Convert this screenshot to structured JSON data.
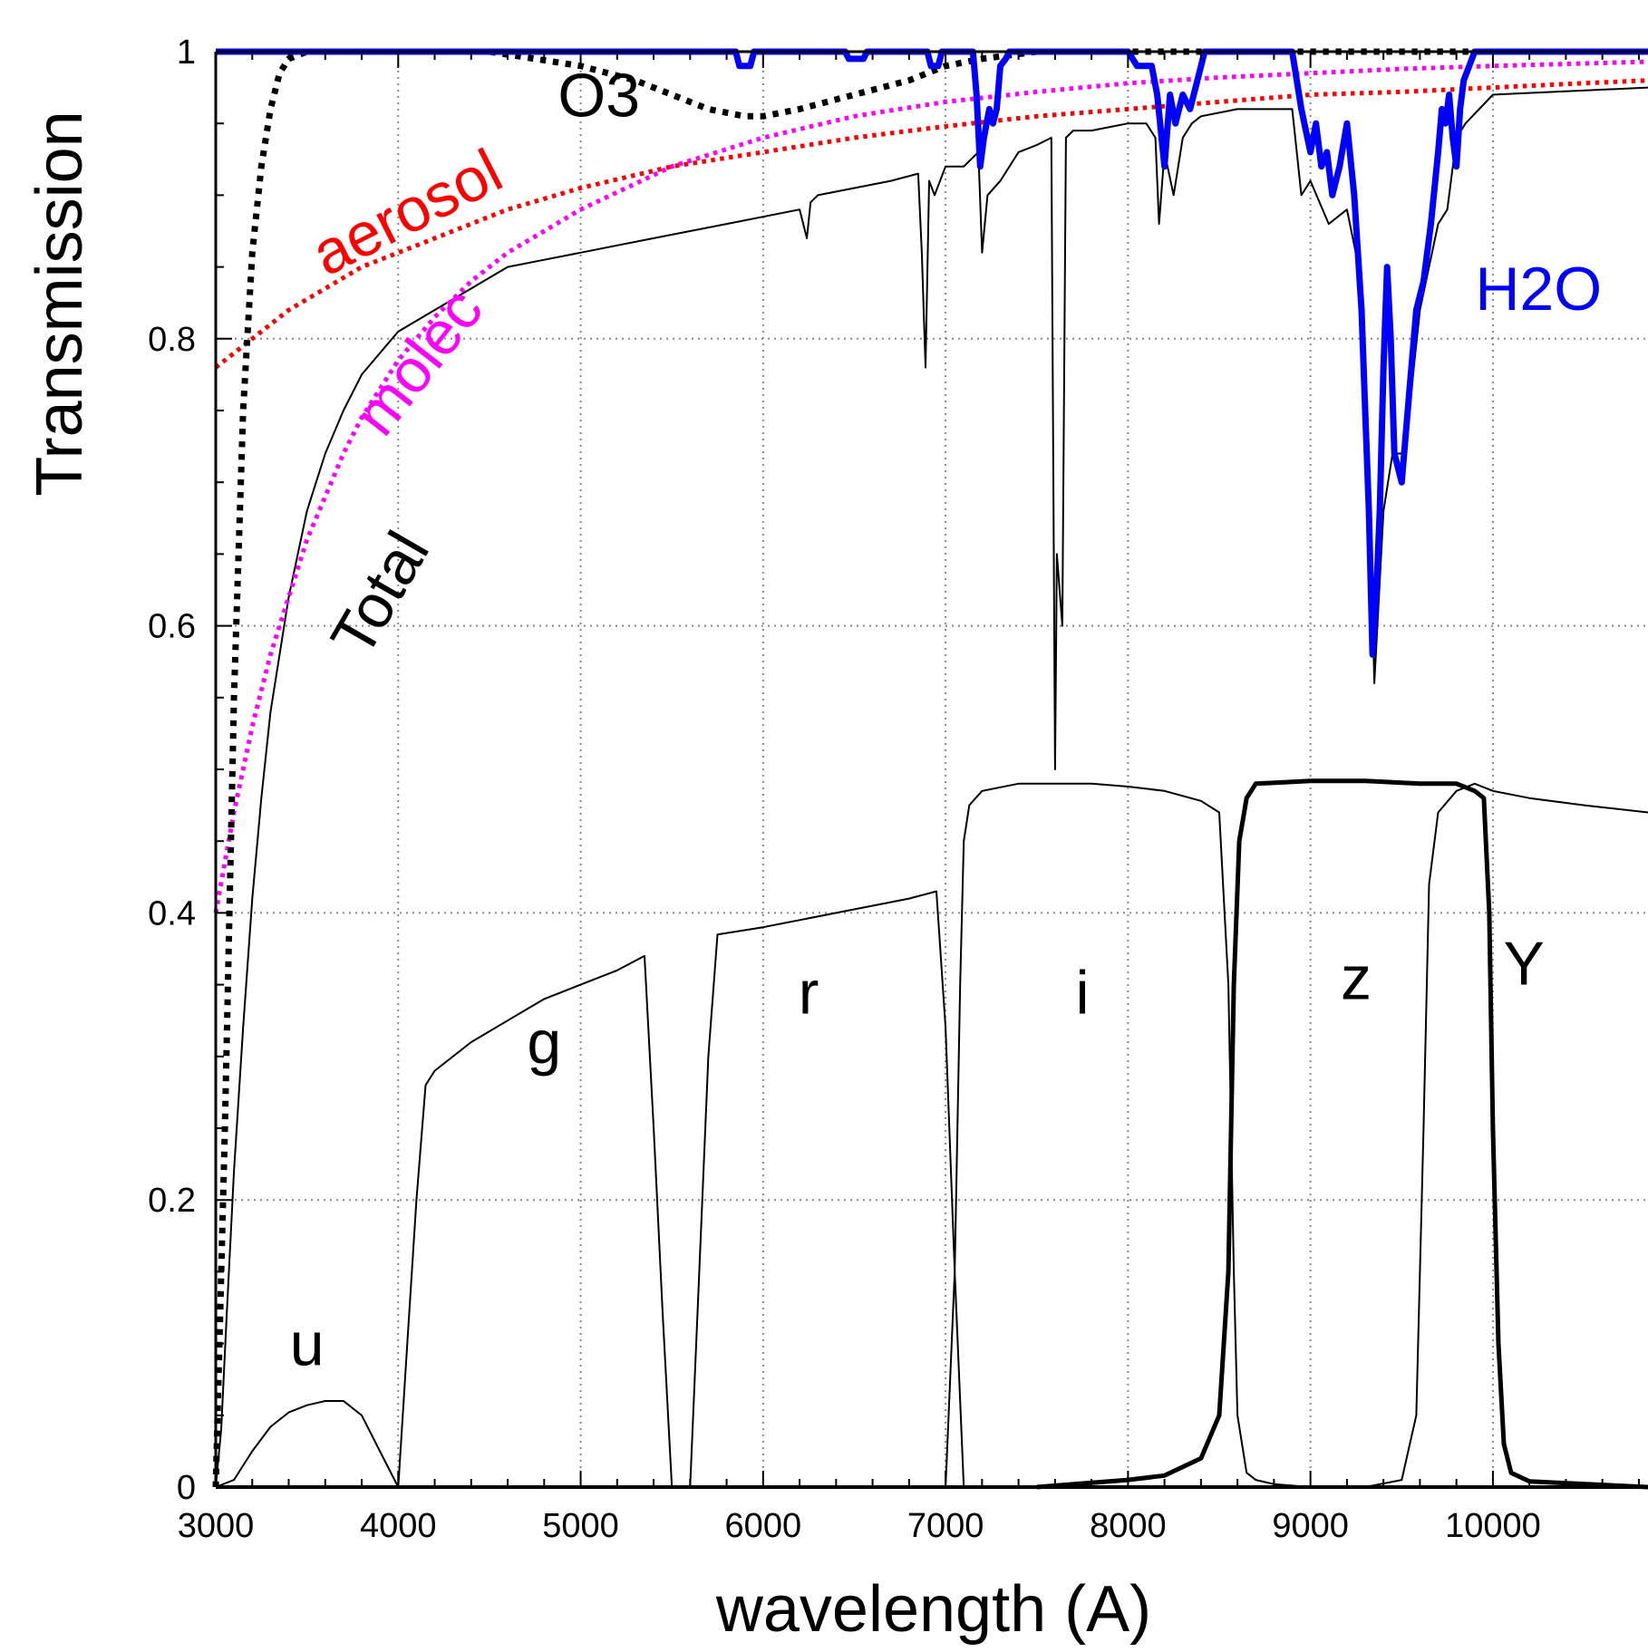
{
  "chart_data": {
    "type": "line",
    "title": "",
    "xlabel": "wavelength (A)",
    "ylabel": "Transmission",
    "xlim": [
      3000,
      10850
    ],
    "ylim": [
      0,
      1
    ],
    "grid": true,
    "legend": "none",
    "x_ticks": [
      3000,
      4000,
      5000,
      6000,
      7000,
      8000,
      9000,
      10000
    ],
    "x_tick_labels": [
      "3000",
      "4000",
      "5000",
      "6000",
      "7000",
      "8000",
      "9000",
      "10000"
    ],
    "y_ticks": [
      0,
      0.2,
      0.4,
      0.6,
      0.8,
      1
    ],
    "y_tick_labels": [
      "0",
      "0.2",
      "0.4",
      "0.6",
      "0.8",
      "1"
    ],
    "annotations": [
      {
        "text": "O3",
        "x": 5100,
        "y": 0.955,
        "color": "#000000",
        "rotate": 0
      },
      {
        "text": "aerosol",
        "x": 4100,
        "y": 0.875,
        "color": "#ff0000",
        "rotate": -27
      },
      {
        "text": "molec",
        "x": 4200,
        "y": 0.775,
        "color": "#ff00ff",
        "rotate": -52
      },
      {
        "text": "Total",
        "x": 4000,
        "y": 0.615,
        "color": "#000000",
        "rotate": -60
      },
      {
        "text": "H2O",
        "x": 10250,
        "y": 0.82,
        "color": "#0000ff",
        "rotate": 0
      },
      {
        "text": "u",
        "x": 3500,
        "y": 0.085,
        "color": "#000000",
        "rotate": 0
      },
      {
        "text": "g",
        "x": 4800,
        "y": 0.295,
        "color": "#000000",
        "rotate": 0
      },
      {
        "text": "r",
        "x": 6250,
        "y": 0.33,
        "color": "#000000",
        "rotate": 0
      },
      {
        "text": "i",
        "x": 7750,
        "y": 0.33,
        "color": "#000000",
        "rotate": 0
      },
      {
        "text": "z",
        "x": 9250,
        "y": 0.34,
        "color": "#000000",
        "rotate": 0
      },
      {
        "text": "Y",
        "x": 10170,
        "y": 0.35,
        "color": "#000000",
        "rotate": 0
      }
    ],
    "series": [
      {
        "name": "Total",
        "color": "#000000",
        "style": "solid",
        "width": 2,
        "x": [
          3000,
          3030,
          3060,
          3100,
          3150,
          3200,
          3250,
          3300,
          3400,
          3500,
          3600,
          3700,
          3800,
          3900,
          4000,
          4200,
          4400,
          4600,
          4800,
          5000,
          5200,
          5400,
          5600,
          5800,
          6000,
          6200,
          6240,
          6260,
          6300,
          6500,
          6700,
          6850,
          6870,
          6890,
          6910,
          6940,
          7000,
          7100,
          7180,
          7200,
          7230,
          7300,
          7400,
          7500,
          7580,
          7600,
          7610,
          7640,
          7660,
          7700,
          7800,
          8000,
          8100,
          8150,
          8170,
          8200,
          8250,
          8300,
          8350,
          8400,
          8600,
          8900,
          8950,
          9000,
          9100,
          9200,
          9280,
          9320,
          9350,
          9400,
          9450,
          9500,
          9550,
          9600,
          9700,
          9750,
          9800,
          9850,
          10000,
          10850
        ],
        "values": [
          0.0,
          0.04,
          0.12,
          0.22,
          0.32,
          0.41,
          0.48,
          0.54,
          0.62,
          0.68,
          0.72,
          0.75,
          0.775,
          0.79,
          0.805,
          0.82,
          0.835,
          0.85,
          0.855,
          0.86,
          0.865,
          0.87,
          0.875,
          0.88,
          0.885,
          0.89,
          0.87,
          0.895,
          0.9,
          0.905,
          0.91,
          0.915,
          0.86,
          0.78,
          0.91,
          0.9,
          0.92,
          0.92,
          0.93,
          0.86,
          0.9,
          0.91,
          0.93,
          0.935,
          0.94,
          0.5,
          0.65,
          0.6,
          0.94,
          0.945,
          0.945,
          0.95,
          0.95,
          0.94,
          0.88,
          0.93,
          0.9,
          0.94,
          0.95,
          0.955,
          0.96,
          0.96,
          0.9,
          0.91,
          0.88,
          0.89,
          0.84,
          0.72,
          0.56,
          0.68,
          0.72,
          0.72,
          0.76,
          0.82,
          0.88,
          0.89,
          0.94,
          0.95,
          0.97,
          0.975
        ]
      },
      {
        "name": "aerosol",
        "color": "#ff0000",
        "style": "dotted",
        "width": 5,
        "x": [
          3000,
          3200,
          3400,
          3600,
          3800,
          4000,
          4300,
          4600,
          5000,
          5500,
          6000,
          6500,
          7000,
          7500,
          8000,
          8500,
          9000,
          9500,
          10000,
          10500,
          10850
        ],
        "values": [
          0.78,
          0.8,
          0.82,
          0.835,
          0.85,
          0.86,
          0.875,
          0.89,
          0.905,
          0.92,
          0.93,
          0.94,
          0.948,
          0.955,
          0.96,
          0.965,
          0.97,
          0.972,
          0.975,
          0.978,
          0.98
        ]
      },
      {
        "name": "molec",
        "color": "#ff00ff",
        "style": "dotted",
        "width": 5,
        "x": [
          3000,
          3100,
          3200,
          3300,
          3400,
          3500,
          3600,
          3700,
          3800,
          4000,
          4200,
          4400,
          4600,
          4800,
          5000,
          5500,
          6000,
          6500,
          7000,
          7500,
          8000,
          8500,
          9000,
          9500,
          10000,
          10850
        ],
        "values": [
          0.4,
          0.47,
          0.53,
          0.58,
          0.62,
          0.66,
          0.69,
          0.72,
          0.745,
          0.785,
          0.815,
          0.84,
          0.86,
          0.875,
          0.89,
          0.92,
          0.94,
          0.955,
          0.965,
          0.972,
          0.978,
          0.982,
          0.985,
          0.988,
          0.99,
          0.993
        ]
      },
      {
        "name": "O3",
        "color": "#000000",
        "style": "dotted",
        "width": 7,
        "x": [
          3000,
          3050,
          3100,
          3150,
          3200,
          3250,
          3300,
          3350,
          3400,
          3500,
          4000,
          4500,
          5000,
          5300,
          5500,
          5700,
          5900,
          6000,
          6200,
          6500,
          6800,
          7000,
          7200,
          7500,
          8000,
          9000,
          10000,
          10850
        ],
        "values": [
          0.0,
          0.25,
          0.55,
          0.75,
          0.86,
          0.92,
          0.96,
          0.985,
          0.995,
          1.0,
          1.0,
          1.0,
          0.99,
          0.98,
          0.97,
          0.96,
          0.955,
          0.955,
          0.96,
          0.97,
          0.98,
          0.99,
          0.995,
          1.0,
          1.0,
          1.0,
          1.0,
          1.0
        ]
      },
      {
        "name": "H2O",
        "color": "#0000ff",
        "style": "solid",
        "width": 7,
        "x": [
          3000,
          5850,
          5870,
          5930,
          5950,
          6450,
          6470,
          6550,
          6570,
          6900,
          6920,
          6960,
          6980,
          7150,
          7170,
          7190,
          7210,
          7240,
          7260,
          7280,
          7300,
          7330,
          7350,
          8000,
          8050,
          8130,
          8160,
          8200,
          8230,
          8260,
          8300,
          8340,
          8380,
          8420,
          8900,
          8950,
          9000,
          9030,
          9060,
          9090,
          9120,
          9160,
          9200,
          9240,
          9280,
          9300,
          9320,
          9340,
          9360,
          9380,
          9400,
          9420,
          9440,
          9460,
          9500,
          9540,
          9580,
          9620,
          9660,
          9700,
          9720,
          9740,
          9760,
          9780,
          9800,
          9820,
          9840,
          9870,
          9900,
          10000,
          10850
        ],
        "values": [
          1.0,
          1.0,
          0.99,
          0.99,
          1.0,
          1.0,
          0.995,
          0.995,
          1.0,
          1.0,
          0.99,
          0.99,
          1.0,
          1.0,
          0.97,
          0.92,
          0.94,
          0.96,
          0.95,
          0.96,
          0.99,
          0.995,
          1.0,
          1.0,
          0.99,
          0.99,
          0.97,
          0.92,
          0.97,
          0.95,
          0.97,
          0.96,
          0.98,
          1.0,
          1.0,
          0.96,
          0.93,
          0.95,
          0.92,
          0.93,
          0.9,
          0.92,
          0.95,
          0.9,
          0.82,
          0.75,
          0.68,
          0.58,
          0.62,
          0.68,
          0.78,
          0.85,
          0.8,
          0.72,
          0.7,
          0.76,
          0.82,
          0.84,
          0.88,
          0.93,
          0.96,
          0.95,
          0.97,
          0.94,
          0.92,
          0.96,
          0.98,
          0.99,
          1.0,
          1.0,
          1.0
        ]
      },
      {
        "name": "u",
        "color": "#000000",
        "style": "solid",
        "width": 2,
        "x": [
          3000,
          3100,
          3200,
          3300,
          3400,
          3500,
          3600,
          3700,
          3800,
          3900,
          4000
        ],
        "values": [
          0.0,
          0.005,
          0.025,
          0.042,
          0.052,
          0.057,
          0.06,
          0.06,
          0.05,
          0.025,
          0.0
        ]
      },
      {
        "name": "g",
        "color": "#000000",
        "style": "solid",
        "width": 2,
        "x": [
          4000,
          4050,
          4100,
          4150,
          4200,
          4400,
          4600,
          4800,
          5000,
          5200,
          5350,
          5400,
          5450,
          5500
        ],
        "values": [
          0.0,
          0.1,
          0.2,
          0.28,
          0.29,
          0.31,
          0.325,
          0.34,
          0.35,
          0.36,
          0.37,
          0.25,
          0.12,
          0.0
        ]
      },
      {
        "name": "r",
        "color": "#000000",
        "style": "solid",
        "width": 2,
        "x": [
          5600,
          5650,
          5700,
          5750,
          6000,
          6200,
          6400,
          6600,
          6800,
          6950,
          7000,
          7050,
          7100
        ],
        "values": [
          0.0,
          0.15,
          0.3,
          0.385,
          0.39,
          0.395,
          0.4,
          0.405,
          0.41,
          0.415,
          0.32,
          0.15,
          0.0
        ]
      },
      {
        "name": "i",
        "color": "#000000",
        "style": "solid",
        "width": 2,
        "x": [
          7000,
          7050,
          7080,
          7100,
          7130,
          7200,
          7400,
          7600,
          7800,
          8000,
          8200,
          8400,
          8500,
          8550,
          8580,
          8600,
          8650,
          8700,
          8800,
          9000
        ],
        "values": [
          0.0,
          0.15,
          0.35,
          0.45,
          0.475,
          0.485,
          0.49,
          0.49,
          0.49,
          0.488,
          0.485,
          0.478,
          0.47,
          0.35,
          0.15,
          0.05,
          0.01,
          0.005,
          0.002,
          0.0
        ]
      },
      {
        "name": "z",
        "color": "#000000",
        "style": "solid",
        "width": 5,
        "x": [
          7500,
          7800,
          8000,
          8200,
          8400,
          8500,
          8550,
          8580,
          8610,
          8650,
          8700,
          9000,
          9300,
          9600,
          9800,
          9900,
          9950,
          9980,
          10000,
          10030,
          10060,
          10100,
          10200,
          10850
        ],
        "values": [
          0.0,
          0.003,
          0.005,
          0.008,
          0.02,
          0.05,
          0.15,
          0.35,
          0.45,
          0.48,
          0.49,
          0.492,
          0.492,
          0.49,
          0.49,
          0.485,
          0.48,
          0.4,
          0.25,
          0.1,
          0.03,
          0.01,
          0.004,
          0.0
        ]
      },
      {
        "name": "Y",
        "color": "#000000",
        "style": "solid",
        "width": 2,
        "x": [
          9300,
          9500,
          9580,
          9620,
          9650,
          9700,
          9800,
          9900,
          10000,
          10200,
          10500,
          10850
        ],
        "values": [
          0.0,
          0.005,
          0.05,
          0.25,
          0.42,
          0.47,
          0.485,
          0.49,
          0.485,
          0.48,
          0.475,
          0.47
        ]
      }
    ]
  }
}
